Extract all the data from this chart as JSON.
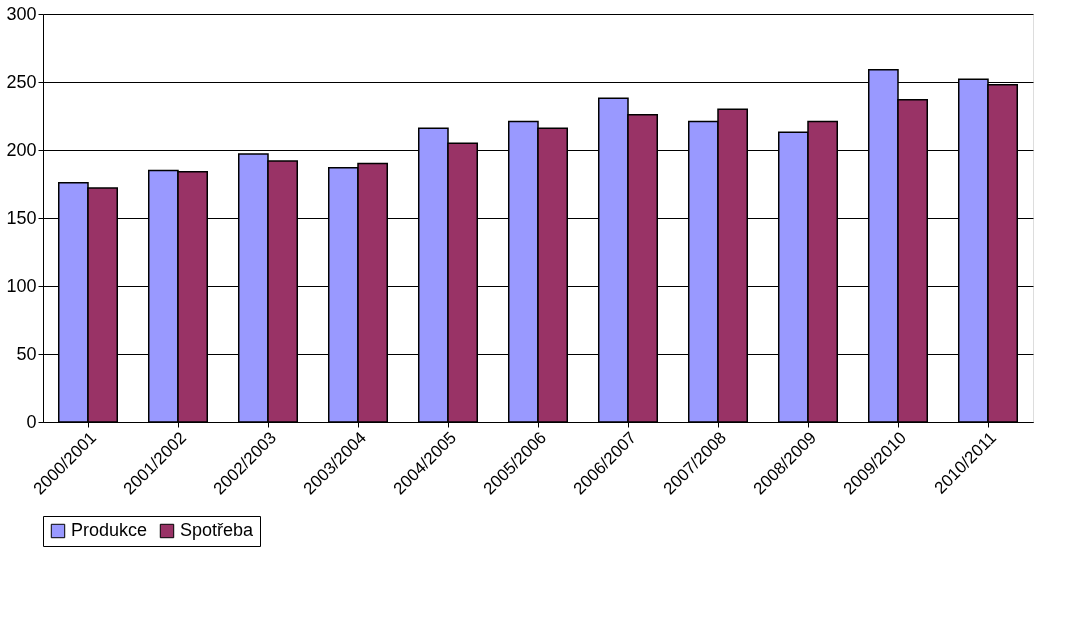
{
  "chart_data": {
    "type": "bar",
    "categories": [
      "2000/2001",
      "2001/2002",
      "2002/2003",
      "2003/2004",
      "2004/2005",
      "2005/2006",
      "2006/2007",
      "2007/2008",
      "2008/2009",
      "2009/2010",
      "2010/2011"
    ],
    "series": [
      {
        "name": "Produkce",
        "color": "#9999ff",
        "values": [
          176,
          185,
          197,
          187,
          216,
          221,
          238,
          221,
          213,
          259,
          252
        ]
      },
      {
        "name": "Spotřeba",
        "color": "#993366",
        "values": [
          172,
          184,
          192,
          190,
          205,
          216,
          226,
          230,
          221,
          237,
          248
        ]
      }
    ],
    "ylim": [
      0,
      300
    ],
    "yticks": [
      0,
      50,
      100,
      150,
      200,
      250,
      300
    ],
    "grid": "y",
    "legend": "bottom"
  }
}
